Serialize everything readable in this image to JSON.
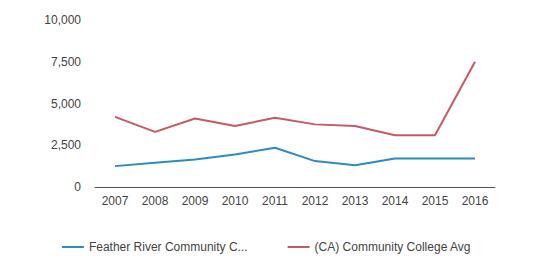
{
  "chart_data": {
    "type": "line",
    "categories": [
      "2007",
      "2008",
      "2009",
      "2010",
      "2011",
      "2012",
      "2013",
      "2014",
      "2015",
      "2016"
    ],
    "series": [
      {
        "name": "Feather River Community C...",
        "color": "#2b8cbe",
        "values": [
          1250,
          1450,
          1650,
          1950,
          2350,
          1550,
          1300,
          1700,
          1700,
          1700
        ]
      },
      {
        "name": "(CA) Community College Avg",
        "color": "#c45a63",
        "values": [
          4200,
          3300,
          4100,
          3650,
          4150,
          3750,
          3650,
          3100,
          3100,
          7500
        ]
      }
    ],
    "ylim": [
      0,
      10000
    ],
    "yticks": [
      0,
      {
        "value": 2500,
        "label": "2,500"
      },
      {
        "value": 5000,
        "label": "5,000"
      },
      {
        "value": 7500,
        "label": "7,500"
      },
      {
        "value": 10000,
        "label": "10,000"
      }
    ],
    "grid": false,
    "legend": "bottom"
  }
}
